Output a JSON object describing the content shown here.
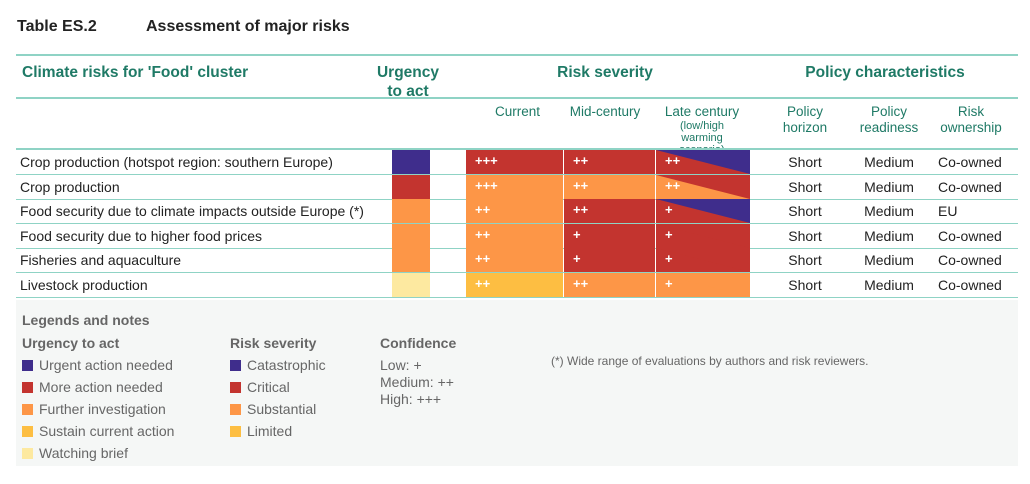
{
  "title": {
    "number": "Table ES.2",
    "text": "Assessment of major risks"
  },
  "colors": {
    "catastrophic": "#3f2d8c",
    "critical": "#c3342f",
    "substantial": "#fd9647",
    "limited": "#fdbe42",
    "watching": "#fde9a0",
    "header": "#1f7a66",
    "rule": "#8fd3c5"
  },
  "header": {
    "risks": "Climate risks for 'Food' cluster",
    "urgency": "Urgency to act",
    "severity": "Risk severity",
    "policy": "Policy characteristics",
    "current": "Current",
    "mid": "Mid-century",
    "late": "Late century",
    "late_note": "(low/high warming scenario)",
    "horizon": "Policy horizon",
    "readiness": "Policy readiness",
    "ownership": "Risk ownership"
  },
  "rows": [
    {
      "label": "Crop production (hotspot region: southern Europe)",
      "urgency": "catastrophic",
      "current": {
        "level": "critical",
        "conf": "+++"
      },
      "mid": {
        "level": "critical",
        "conf": "++"
      },
      "late": {
        "low": "critical",
        "high": "catastrophic",
        "conf": "++"
      },
      "horizon": "Short",
      "readiness": "Medium",
      "ownership": "Co-owned"
    },
    {
      "label": "Crop production",
      "urgency": "critical",
      "current": {
        "level": "substantial",
        "conf": "+++"
      },
      "mid": {
        "level": "substantial",
        "conf": "++"
      },
      "late": {
        "low": "substantial",
        "high": "critical",
        "conf": "++"
      },
      "horizon": "Short",
      "readiness": "Medium",
      "ownership": "Co-owned"
    },
    {
      "label": "Food security due to climate impacts outside Europe (*)",
      "urgency": "substantial",
      "current": {
        "level": "substantial",
        "conf": "++"
      },
      "mid": {
        "level": "critical",
        "conf": "++"
      },
      "late": {
        "low": "critical",
        "high": "catastrophic",
        "conf": "+"
      },
      "horizon": "Short",
      "readiness": "Medium",
      "ownership": "EU"
    },
    {
      "label": "Food security due to higher food prices",
      "urgency": "substantial",
      "current": {
        "level": "substantial",
        "conf": "++"
      },
      "mid": {
        "level": "critical",
        "conf": "+"
      },
      "late": {
        "low": "critical",
        "high": "critical",
        "conf": "+"
      },
      "horizon": "Short",
      "readiness": "Medium",
      "ownership": "Co-owned"
    },
    {
      "label": "Fisheries and aquaculture",
      "urgency": "substantial",
      "current": {
        "level": "substantial",
        "conf": "++"
      },
      "mid": {
        "level": "critical",
        "conf": "+"
      },
      "late": {
        "low": "critical",
        "high": "critical",
        "conf": "+"
      },
      "horizon": "Short",
      "readiness": "Medium",
      "ownership": "Co-owned"
    },
    {
      "label": "Livestock production",
      "urgency": "watching",
      "current": {
        "level": "limited",
        "conf": "++"
      },
      "mid": {
        "level": "substantial",
        "conf": "++"
      },
      "late": {
        "low": "substantial",
        "high": "substantial",
        "conf": "+"
      },
      "horizon": "Short",
      "readiness": "Medium",
      "ownership": "Co-owned"
    }
  ],
  "legend": {
    "title": "Legends and notes",
    "urgency_title": "Urgency to act",
    "urgency": [
      {
        "label": "Urgent action needed",
        "color": "#3f2d8c"
      },
      {
        "label": "More action needed",
        "color": "#c3342f"
      },
      {
        "label": "Further investigation",
        "color": "#fd9647"
      },
      {
        "label": "Sustain current action",
        "color": "#fdbe42"
      },
      {
        "label": "Watching brief",
        "color": "#fde9a0"
      }
    ],
    "severity_title": "Risk severity",
    "severity": [
      {
        "label": "Catastrophic",
        "color": "#3f2d8c"
      },
      {
        "label": "Critical",
        "color": "#c3342f"
      },
      {
        "label": "Substantial",
        "color": "#fd9647"
      },
      {
        "label": "Limited",
        "color": "#fdbe42"
      }
    ],
    "confidence_title": "Confidence",
    "confidence": [
      "Low: +",
      "Medium: ++",
      "High: +++"
    ],
    "note": "(*) Wide range of evaluations by authors and risk reviewers."
  }
}
